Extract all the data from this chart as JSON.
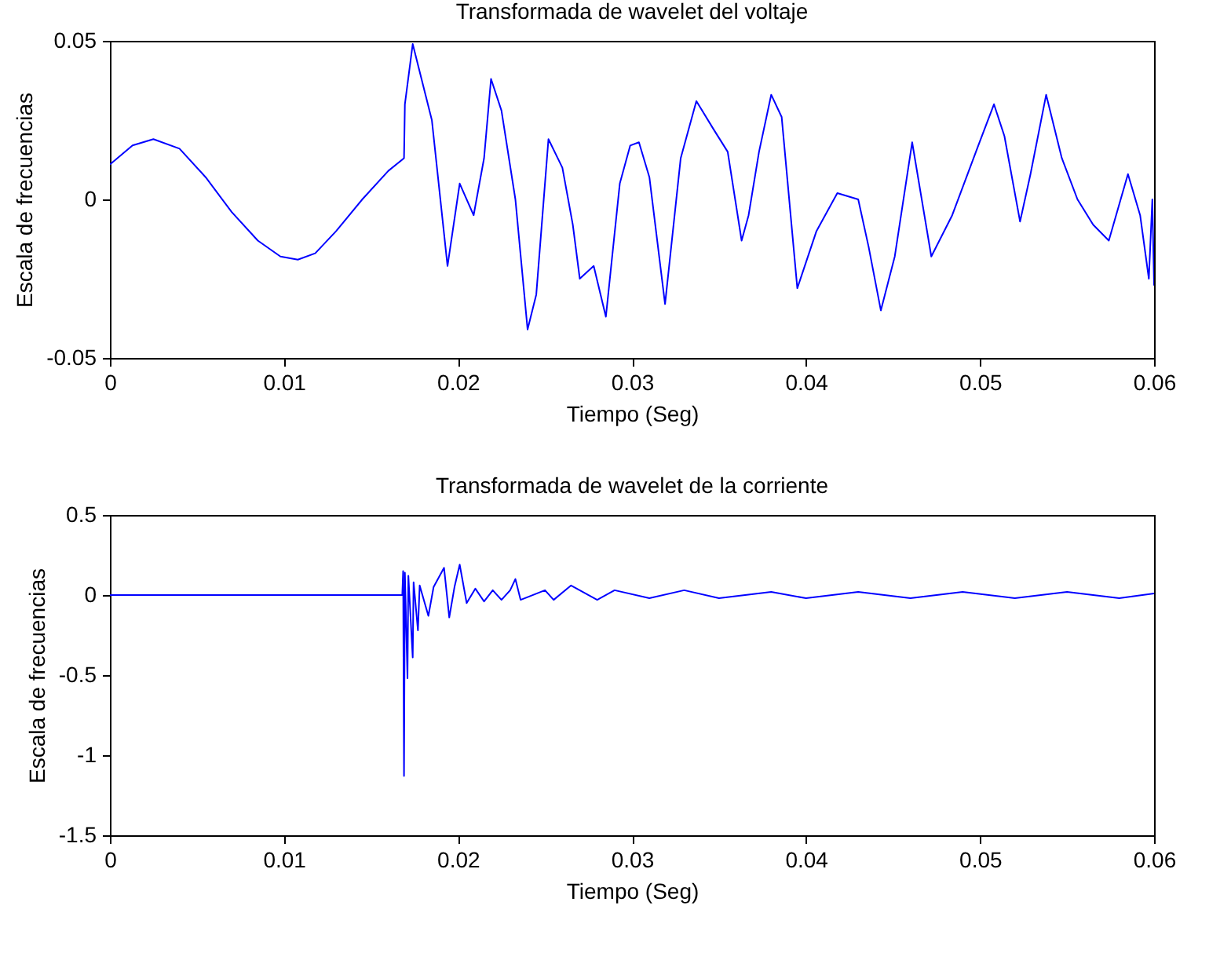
{
  "chart_data": [
    {
      "type": "line",
      "title": "Transformada de wavelet del voltaje",
      "xlabel": "Tiempo (Seg)",
      "ylabel": "Escala de frecuencias",
      "xlim": [
        0,
        0.06
      ],
      "xticks": [
        0,
        0.01,
        0.02,
        0.03,
        0.04,
        0.05,
        0.06
      ],
      "ylim": [
        -0.05,
        0.05
      ],
      "yticks": [
        -0.05,
        0,
        0.05
      ],
      "grid": false,
      "marker": "none",
      "line_style": "solid",
      "series": [
        {
          "color": "#0000ff",
          "x": [
            0,
            0.0013,
            0.0025,
            0.004,
            0.0055,
            0.007,
            0.0085,
            0.0098,
            0.0108,
            0.0118,
            0.013,
            0.0145,
            0.016,
            0.0169,
            0.01695,
            0.0174,
            0.0185,
            0.0194,
            0.0201,
            0.0209,
            0.0215,
            0.0219,
            0.0225,
            0.0233,
            0.024,
            0.0245,
            0.0252,
            0.026,
            0.0266,
            0.027,
            0.0278,
            0.0285,
            0.0293,
            0.0299,
            0.0304,
            0.031,
            0.0319,
            0.0328,
            0.0337,
            0.0347,
            0.0355,
            0.0363,
            0.0367,
            0.0373,
            0.038,
            0.0386,
            0.0395,
            0.0406,
            0.0418,
            0.043,
            0.0436,
            0.0443,
            0.0451,
            0.0461,
            0.0472,
            0.0484,
            0.0499,
            0.0508,
            0.0514,
            0.0523,
            0.0529,
            0.0538,
            0.0547,
            0.0556,
            0.0565,
            0.0574,
            0.0585,
            0.0592,
            0.0597,
            0.0599,
            0.06
          ],
          "values": [
            0.011,
            0.017,
            0.019,
            0.016,
            0.007,
            -0.004,
            -0.013,
            -0.018,
            -0.019,
            -0.017,
            -0.01,
            0.0,
            0.009,
            0.013,
            0.03,
            0.049,
            0.025,
            -0.021,
            0.005,
            -0.005,
            0.013,
            0.038,
            0.028,
            0.0,
            -0.041,
            -0.03,
            0.019,
            0.01,
            -0.008,
            -0.025,
            -0.021,
            -0.037,
            0.005,
            0.017,
            0.018,
            0.007,
            -0.033,
            0.013,
            0.031,
            0.022,
            0.015,
            -0.013,
            -0.005,
            0.015,
            0.033,
            0.026,
            -0.028,
            -0.01,
            0.002,
            0.0,
            -0.015,
            -0.035,
            -0.018,
            0.018,
            -0.018,
            -0.005,
            0.017,
            0.03,
            0.02,
            -0.007,
            0.008,
            0.033,
            0.013,
            0.0,
            -0.008,
            -0.013,
            0.008,
            -0.005,
            -0.025,
            0.0,
            -0.027
          ]
        }
      ]
    },
    {
      "type": "line",
      "title": "Transformada de wavelet de la corriente",
      "xlabel": "Tiempo (Seg)",
      "ylabel": "Escala de frecuencias",
      "xlim": [
        0,
        0.06
      ],
      "xticks": [
        0,
        0.01,
        0.02,
        0.03,
        0.04,
        0.05,
        0.06
      ],
      "ylim": [
        -1.5,
        0.5
      ],
      "yticks": [
        -1.5,
        -1,
        -0.5,
        0,
        0.5
      ],
      "grid": false,
      "marker": "none",
      "line_style": "solid",
      "series": [
        {
          "color": "#0000ff",
          "x": [
            0,
            0.0168,
            0.01685,
            0.0169,
            0.01695,
            0.0171,
            0.01715,
            0.0174,
            0.01745,
            0.0177,
            0.0178,
            0.0183,
            0.0186,
            0.0192,
            0.0195,
            0.0198,
            0.0201,
            0.0205,
            0.021,
            0.0215,
            0.022,
            0.0225,
            0.023,
            0.0233,
            0.0236,
            0.025,
            0.0255,
            0.0265,
            0.028,
            0.029,
            0.031,
            0.033,
            0.035,
            0.038,
            0.04,
            0.043,
            0.046,
            0.049,
            0.052,
            0.055,
            0.058,
            0.06
          ],
          "values": [
            0,
            0,
            0.15,
            -1.13,
            0.14,
            -0.52,
            0.12,
            -0.39,
            0.08,
            -0.22,
            0.06,
            -0.13,
            0.05,
            0.17,
            -0.14,
            0.05,
            0.19,
            -0.05,
            0.04,
            -0.04,
            0.03,
            -0.03,
            0.03,
            0.1,
            -0.03,
            0.03,
            -0.03,
            0.06,
            -0.03,
            0.03,
            -0.02,
            0.03,
            -0.02,
            0.02,
            -0.02,
            0.02,
            -0.02,
            0.02,
            -0.02,
            0.02,
            -0.02,
            0.01
          ]
        }
      ]
    }
  ]
}
